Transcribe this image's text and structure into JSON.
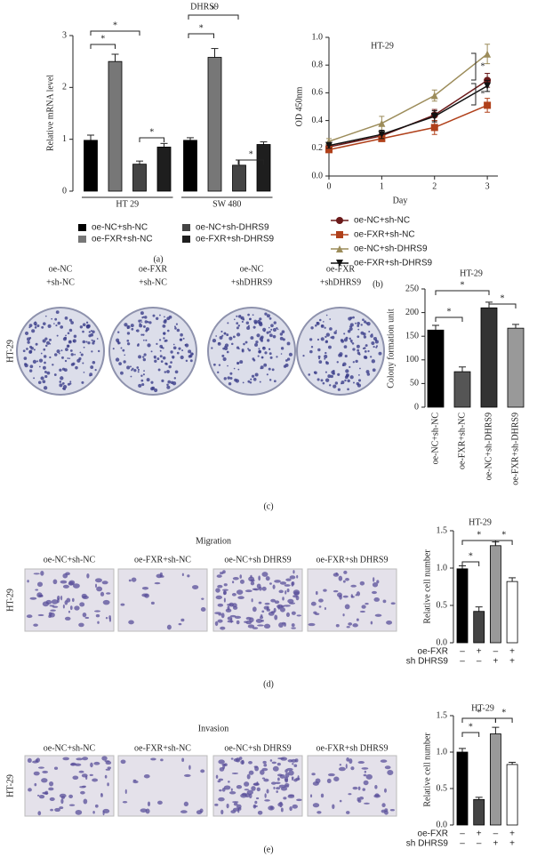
{
  "chart_data": [
    {
      "type": "bar",
      "title": "DHRS9",
      "y_label": "Relative mRNA level",
      "categories": [
        "HT 29",
        "SW 480"
      ],
      "ylim": [
        0,
        3
      ],
      "yticks": [
        0,
        1,
        2,
        3
      ],
      "series": [
        {
          "name": "oe-NC+sh-NC",
          "color": "#000000",
          "values": [
            0.98,
            0.98
          ],
          "errors": [
            0.1,
            0.05
          ]
        },
        {
          "name": "oe-FXR+sh-NC",
          "color": "#777777",
          "values": [
            2.5,
            2.58
          ],
          "errors": [
            0.14,
            0.17
          ]
        },
        {
          "name": "oe-NC+sh-DHRS9",
          "color": "#444444",
          "values": [
            0.52,
            0.5
          ],
          "errors": [
            0.06,
            0.1
          ]
        },
        {
          "name": "oe-FXR+sh-DHRS9",
          "color": "#1e1e1e",
          "values": [
            0.85,
            0.9
          ],
          "errors": [
            0.07,
            0.05
          ]
        }
      ],
      "annotations": [
        "*",
        "*",
        "*",
        "*",
        "*",
        "*"
      ]
    },
    {
      "type": "line",
      "title": "HT-29",
      "x_label": "Day",
      "y_label": "OD 450nm",
      "x": [
        0,
        1,
        2,
        3
      ],
      "xlim": [
        0,
        3.2
      ],
      "xticks": [
        0,
        1,
        2,
        3
      ],
      "ylim": [
        0,
        1.0
      ],
      "yticks": [
        {
          "value": 0,
          "label": "0.0"
        },
        0.2,
        0.4,
        0.6,
        0.8,
        {
          "value": 1.0,
          "label": "1.0"
        }
      ],
      "series": [
        {
          "name": "oe-NC+sh-NC",
          "color": "#6b1a1a",
          "values": [
            0.21,
            0.29,
            0.44,
            0.69
          ],
          "errors": [
            0.02,
            0.03,
            0.04,
            0.05
          ]
        },
        {
          "name": "oe-FXR+sh-NC",
          "color": "#b0401a",
          "values": [
            0.19,
            0.27,
            0.35,
            0.51
          ],
          "errors": [
            0.02,
            0.02,
            0.05,
            0.05
          ]
        },
        {
          "name": "oe-NC+sh-DHRS9",
          "color": "#9c8c5a",
          "values": [
            0.25,
            0.38,
            0.58,
            0.88
          ],
          "errors": [
            0.02,
            0.05,
            0.04,
            0.07
          ]
        },
        {
          "name": "oe-FXR+sh-DHRS9",
          "color": "#111111",
          "values": [
            0.22,
            0.3,
            0.43,
            0.65
          ],
          "errors": [
            0.02,
            0.03,
            0.04,
            0.04
          ]
        }
      ],
      "annotations": [
        "*",
        "*"
      ]
    },
    {
      "type": "bar",
      "title": "HT-29",
      "y_label": "Colony formation unit",
      "categories": [
        "oe-NC+sh-NC",
        "oe-FXR+sh-NC",
        "oe-NC+sh-DHRS9",
        "oe-FXR+sh-DHRS9"
      ],
      "values": [
        163,
        75,
        210,
        167
      ],
      "errors": [
        10,
        10,
        12,
        8
      ],
      "colors": [
        "#000000",
        "#555555",
        "#333333",
        "#999999"
      ],
      "ylim": [
        0,
        250
      ],
      "yticks": [
        0,
        50,
        100,
        150,
        200,
        250
      ],
      "annotations": [
        "*",
        "*",
        "*"
      ]
    },
    {
      "type": "bar",
      "title": "HT-29",
      "y_label": "Relative cell number",
      "values": [
        0.99,
        0.42,
        1.3,
        0.82
      ],
      "errors": [
        0.04,
        0.06,
        0.05,
        0.05
      ],
      "colors": [
        "#000000",
        "#444444",
        "#999999",
        "#ffffff"
      ],
      "ylim": [
        0,
        1.5
      ],
      "yticks": [
        {
          "value": 0,
          "label": "0.0"
        },
        0.5,
        {
          "value": 1,
          "label": "1.0"
        },
        1.5
      ],
      "treatments": [
        {
          "name": "oe-FXR",
          "marks": [
            "–",
            "+",
            "–",
            "+"
          ]
        },
        {
          "name": "sh DHRS9",
          "marks": [
            "–",
            "–",
            "+",
            "+"
          ]
        }
      ],
      "annotations": [
        "*",
        "*",
        "*"
      ]
    },
    {
      "type": "bar",
      "title": "HT-29",
      "y_label": "Relative cell number",
      "values": [
        1.0,
        0.35,
        1.25,
        0.83
      ],
      "errors": [
        0.05,
        0.03,
        0.09,
        0.03
      ],
      "colors": [
        "#000000",
        "#444444",
        "#999999",
        "#ffffff"
      ],
      "ylim": [
        0,
        1.5
      ],
      "yticks": [
        {
          "value": 0,
          "label": "0.0"
        },
        0.5,
        {
          "value": 1,
          "label": "1.0"
        },
        1.5
      ],
      "treatments": [
        {
          "name": "oe-FXR",
          "marks": [
            "–",
            "+",
            "–",
            "+"
          ]
        },
        {
          "name": "sh DHRS9",
          "marks": [
            "–",
            "–",
            "+",
            "+"
          ]
        }
      ],
      "annotations": [
        "*",
        "*",
        "*"
      ]
    }
  ],
  "panel_labels": [
    "(a)",
    "(b)",
    "(c)",
    "(d)",
    "(e)"
  ],
  "image_rows": [
    {
      "row_label": "HT-29",
      "captions": [
        [
          "oe-NC",
          "+sh-NC"
        ],
        [
          "oe-FXR",
          "+sh-NC"
        ],
        [
          "oe-NC",
          "+shDHRS9"
        ],
        [
          "oe-FXR",
          "+shDHRS9"
        ]
      ]
    },
    {
      "title": "Migration",
      "row_label": "HT-29",
      "captions": [
        [
          "oe-NC+sh-NC"
        ],
        [
          "oe-FXR+sh-NC"
        ],
        [
          "oe-NC+sh DHRS9"
        ],
        [
          "oe-FXR+sh DHRS9"
        ]
      ]
    },
    {
      "title": "Invasion",
      "row_label": "HT-29",
      "captions": [
        [
          "oe-NC+sh-NC"
        ],
        [
          "oe-FXR+sh-NC"
        ],
        [
          "oe-NC+sh DHRS9"
        ],
        [
          "oe-FXR+sh DHRS9"
        ]
      ]
    }
  ]
}
